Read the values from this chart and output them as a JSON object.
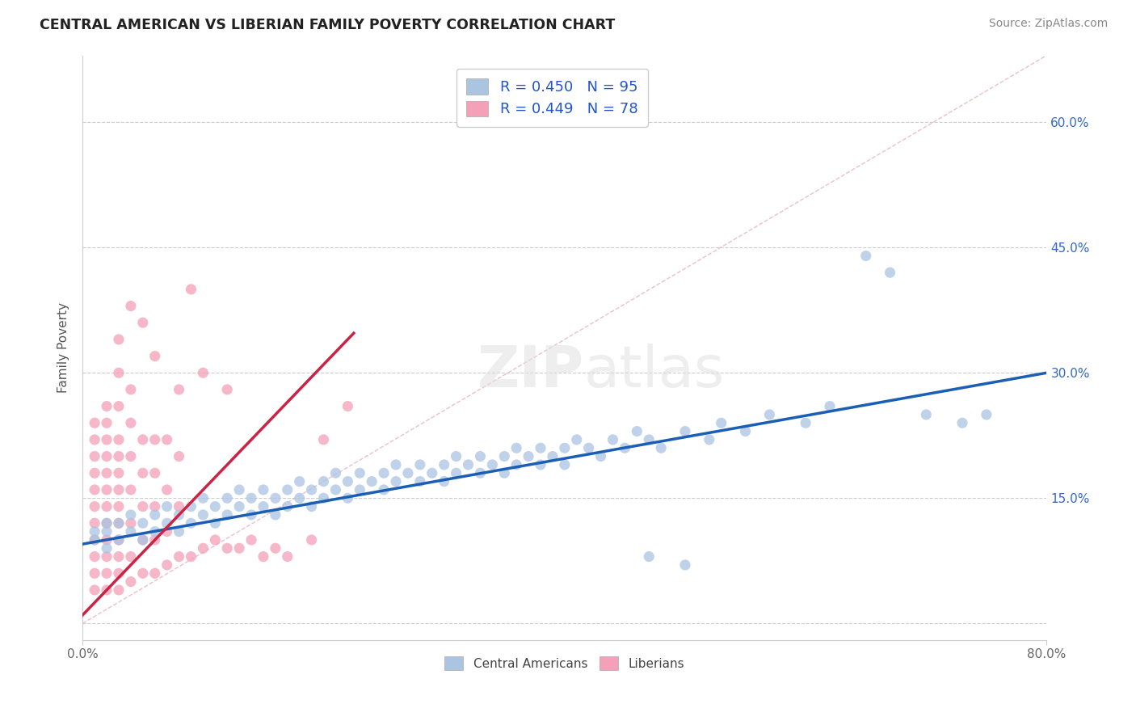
{
  "title": "CENTRAL AMERICAN VS LIBERIAN FAMILY POVERTY CORRELATION CHART",
  "source": "Source: ZipAtlas.com",
  "ylabel": "Family Poverty",
  "xlim": [
    0.0,
    0.8
  ],
  "ylim": [
    -0.02,
    0.68
  ],
  "ca_R": 0.45,
  "ca_N": 95,
  "lib_R": 0.449,
  "lib_N": 78,
  "ca_color": "#aac4e2",
  "ca_line_color": "#1a5fb4",
  "lib_color": "#f4a0b8",
  "lib_line_color": "#cc2244",
  "legend_ca_label": "R = 0.450   N = 95",
  "legend_lib_label": "R = 0.449   N = 78",
  "watermark": "ZIPatlas",
  "ca_points": [
    [
      0.01,
      0.1
    ],
    [
      0.01,
      0.11
    ],
    [
      0.02,
      0.09
    ],
    [
      0.02,
      0.11
    ],
    [
      0.02,
      0.12
    ],
    [
      0.03,
      0.1
    ],
    [
      0.03,
      0.12
    ],
    [
      0.04,
      0.11
    ],
    [
      0.04,
      0.13
    ],
    [
      0.05,
      0.1
    ],
    [
      0.05,
      0.12
    ],
    [
      0.06,
      0.11
    ],
    [
      0.06,
      0.13
    ],
    [
      0.07,
      0.12
    ],
    [
      0.07,
      0.14
    ],
    [
      0.08,
      0.11
    ],
    [
      0.08,
      0.13
    ],
    [
      0.09,
      0.12
    ],
    [
      0.09,
      0.14
    ],
    [
      0.1,
      0.13
    ],
    [
      0.1,
      0.15
    ],
    [
      0.11,
      0.12
    ],
    [
      0.11,
      0.14
    ],
    [
      0.12,
      0.13
    ],
    [
      0.12,
      0.15
    ],
    [
      0.13,
      0.14
    ],
    [
      0.13,
      0.16
    ],
    [
      0.14,
      0.13
    ],
    [
      0.14,
      0.15
    ],
    [
      0.15,
      0.14
    ],
    [
      0.15,
      0.16
    ],
    [
      0.16,
      0.13
    ],
    [
      0.16,
      0.15
    ],
    [
      0.17,
      0.14
    ],
    [
      0.17,
      0.16
    ],
    [
      0.18,
      0.15
    ],
    [
      0.18,
      0.17
    ],
    [
      0.19,
      0.14
    ],
    [
      0.19,
      0.16
    ],
    [
      0.2,
      0.15
    ],
    [
      0.2,
      0.17
    ],
    [
      0.21,
      0.16
    ],
    [
      0.21,
      0.18
    ],
    [
      0.22,
      0.15
    ],
    [
      0.22,
      0.17
    ],
    [
      0.23,
      0.16
    ],
    [
      0.23,
      0.18
    ],
    [
      0.24,
      0.17
    ],
    [
      0.25,
      0.16
    ],
    [
      0.25,
      0.18
    ],
    [
      0.26,
      0.17
    ],
    [
      0.26,
      0.19
    ],
    [
      0.27,
      0.18
    ],
    [
      0.28,
      0.17
    ],
    [
      0.28,
      0.19
    ],
    [
      0.29,
      0.18
    ],
    [
      0.3,
      0.17
    ],
    [
      0.3,
      0.19
    ],
    [
      0.31,
      0.18
    ],
    [
      0.31,
      0.2
    ],
    [
      0.32,
      0.19
    ],
    [
      0.33,
      0.18
    ],
    [
      0.33,
      0.2
    ],
    [
      0.34,
      0.19
    ],
    [
      0.35,
      0.18
    ],
    [
      0.35,
      0.2
    ],
    [
      0.36,
      0.19
    ],
    [
      0.36,
      0.21
    ],
    [
      0.37,
      0.2
    ],
    [
      0.38,
      0.19
    ],
    [
      0.38,
      0.21
    ],
    [
      0.39,
      0.2
    ],
    [
      0.4,
      0.19
    ],
    [
      0.4,
      0.21
    ],
    [
      0.41,
      0.22
    ],
    [
      0.42,
      0.21
    ],
    [
      0.43,
      0.2
    ],
    [
      0.44,
      0.22
    ],
    [
      0.45,
      0.21
    ],
    [
      0.46,
      0.23
    ],
    [
      0.47,
      0.22
    ],
    [
      0.48,
      0.21
    ],
    [
      0.5,
      0.23
    ],
    [
      0.52,
      0.22
    ],
    [
      0.53,
      0.24
    ],
    [
      0.55,
      0.23
    ],
    [
      0.57,
      0.25
    ],
    [
      0.6,
      0.24
    ],
    [
      0.62,
      0.26
    ],
    [
      0.65,
      0.44
    ],
    [
      0.67,
      0.42
    ],
    [
      0.7,
      0.25
    ],
    [
      0.73,
      0.24
    ],
    [
      0.75,
      0.25
    ],
    [
      0.47,
      0.08
    ],
    [
      0.5,
      0.07
    ]
  ],
  "lib_points": [
    [
      0.01,
      0.04
    ],
    [
      0.01,
      0.06
    ],
    [
      0.01,
      0.08
    ],
    [
      0.01,
      0.1
    ],
    [
      0.01,
      0.12
    ],
    [
      0.01,
      0.14
    ],
    [
      0.01,
      0.16
    ],
    [
      0.01,
      0.18
    ],
    [
      0.01,
      0.2
    ],
    [
      0.01,
      0.22
    ],
    [
      0.01,
      0.24
    ],
    [
      0.02,
      0.04
    ],
    [
      0.02,
      0.06
    ],
    [
      0.02,
      0.08
    ],
    [
      0.02,
      0.1
    ],
    [
      0.02,
      0.12
    ],
    [
      0.02,
      0.14
    ],
    [
      0.02,
      0.16
    ],
    [
      0.02,
      0.18
    ],
    [
      0.02,
      0.2
    ],
    [
      0.02,
      0.22
    ],
    [
      0.02,
      0.24
    ],
    [
      0.02,
      0.26
    ],
    [
      0.03,
      0.04
    ],
    [
      0.03,
      0.06
    ],
    [
      0.03,
      0.08
    ],
    [
      0.03,
      0.1
    ],
    [
      0.03,
      0.12
    ],
    [
      0.03,
      0.14
    ],
    [
      0.03,
      0.16
    ],
    [
      0.03,
      0.18
    ],
    [
      0.03,
      0.2
    ],
    [
      0.03,
      0.22
    ],
    [
      0.03,
      0.26
    ],
    [
      0.03,
      0.3
    ],
    [
      0.04,
      0.05
    ],
    [
      0.04,
      0.08
    ],
    [
      0.04,
      0.12
    ],
    [
      0.04,
      0.16
    ],
    [
      0.04,
      0.2
    ],
    [
      0.04,
      0.24
    ],
    [
      0.04,
      0.28
    ],
    [
      0.05,
      0.06
    ],
    [
      0.05,
      0.1
    ],
    [
      0.05,
      0.14
    ],
    [
      0.05,
      0.18
    ],
    [
      0.05,
      0.22
    ],
    [
      0.06,
      0.06
    ],
    [
      0.06,
      0.1
    ],
    [
      0.06,
      0.14
    ],
    [
      0.06,
      0.18
    ],
    [
      0.06,
      0.22
    ],
    [
      0.07,
      0.07
    ],
    [
      0.07,
      0.11
    ],
    [
      0.07,
      0.16
    ],
    [
      0.07,
      0.22
    ],
    [
      0.08,
      0.08
    ],
    [
      0.08,
      0.14
    ],
    [
      0.08,
      0.2
    ],
    [
      0.08,
      0.28
    ],
    [
      0.09,
      0.08
    ],
    [
      0.09,
      0.4
    ],
    [
      0.1,
      0.09
    ],
    [
      0.1,
      0.3
    ],
    [
      0.11,
      0.1
    ],
    [
      0.12,
      0.09
    ],
    [
      0.12,
      0.28
    ],
    [
      0.13,
      0.09
    ],
    [
      0.14,
      0.1
    ],
    [
      0.15,
      0.08
    ],
    [
      0.16,
      0.09
    ],
    [
      0.17,
      0.08
    ],
    [
      0.19,
      0.1
    ],
    [
      0.2,
      0.22
    ],
    [
      0.22,
      0.26
    ],
    [
      0.03,
      0.34
    ],
    [
      0.04,
      0.38
    ],
    [
      0.05,
      0.36
    ],
    [
      0.06,
      0.32
    ]
  ]
}
